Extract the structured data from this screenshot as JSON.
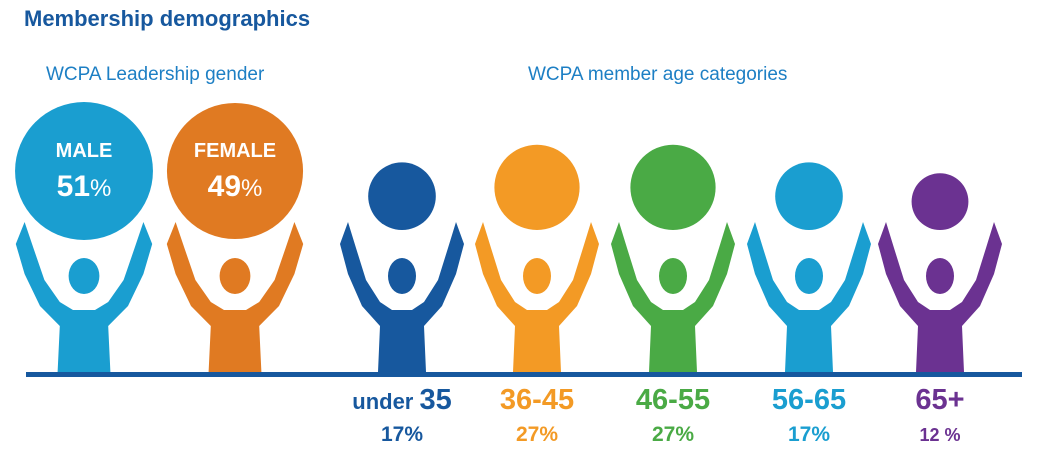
{
  "page_title": "Membership demographics",
  "chart_data": [
    {
      "type": "pictograph",
      "title": "WCPA Leadership gender",
      "unit": "%",
      "categories": [
        "MALE",
        "FEMALE"
      ],
      "values": [
        51,
        49
      ],
      "value_labels": [
        "51",
        "49"
      ],
      "colors": [
        "#1a9ed0",
        "#e07a22"
      ]
    },
    {
      "type": "pictograph",
      "title": "WCPA member age categories",
      "categories": [
        {
          "prefix": "under ",
          "main": "35"
        },
        {
          "prefix": "",
          "main": "36-45"
        },
        {
          "prefix": "",
          "main": "46-55"
        },
        {
          "prefix": "",
          "main": "56-65"
        },
        {
          "prefix": "",
          "main": "65+"
        }
      ],
      "values": [
        17,
        27,
        27,
        17,
        12
      ],
      "value_labels": [
        "17%",
        "27%",
        "27%",
        "17%",
        "12 %"
      ],
      "colors": [
        "#17589e",
        "#f39a25",
        "#4aaa45",
        "#1a9ed0",
        "#6b3291"
      ]
    }
  ],
  "baseline_color": "#17589e"
}
